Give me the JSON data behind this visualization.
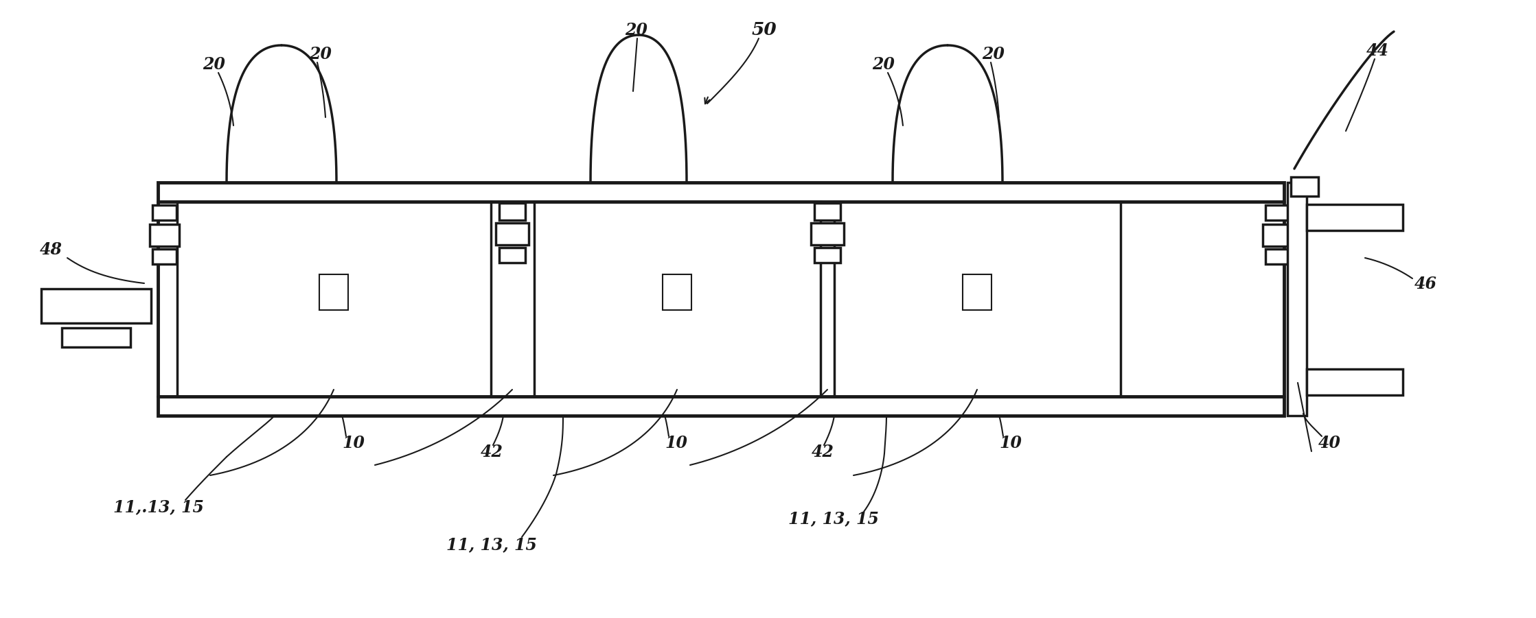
{
  "bg_color": "#ffffff",
  "line_color": "#1a1a1a",
  "lw_thick": 2.5,
  "lw_thin": 1.5,
  "lw_very_thick": 3.5,
  "fig_width": 22.37,
  "fig_height": 9.01,
  "font_size_label": 19,
  "font_size_small": 17
}
